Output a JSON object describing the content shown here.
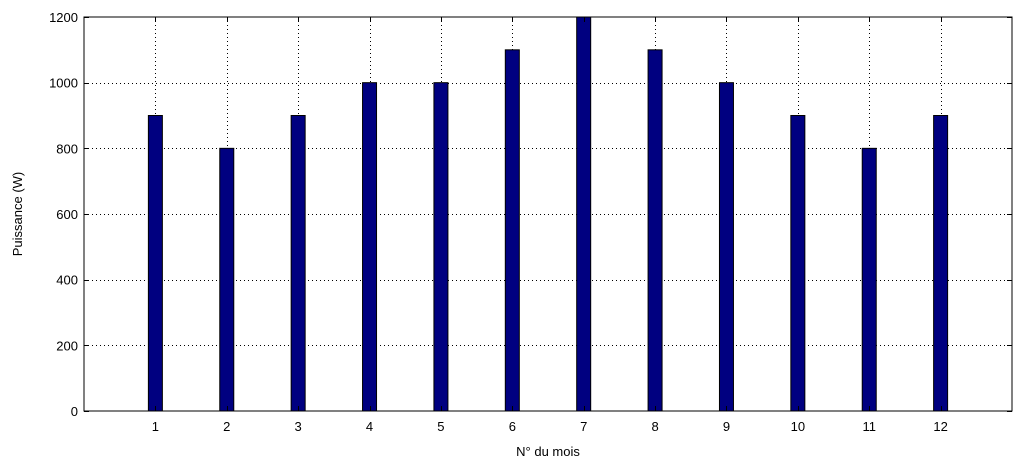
{
  "chart_data": {
    "type": "bar",
    "title": "",
    "xlabel": "N° du mois",
    "ylabel": "Puissance (W)",
    "categories": [
      "1",
      "2",
      "3",
      "4",
      "5",
      "6",
      "7",
      "8",
      "9",
      "10",
      "11",
      "12"
    ],
    "values": [
      900,
      800,
      900,
      1000,
      1000,
      1100,
      1200,
      1100,
      1000,
      900,
      800,
      900
    ],
    "xlim": [
      0,
      13
    ],
    "ylim": [
      0,
      1200
    ],
    "yticks": [
      0,
      200,
      400,
      600,
      800,
      1000,
      1200
    ],
    "grid": true,
    "grid_style": "dotted",
    "bar_color": "#000080",
    "bar_edge_color": "#000000"
  }
}
